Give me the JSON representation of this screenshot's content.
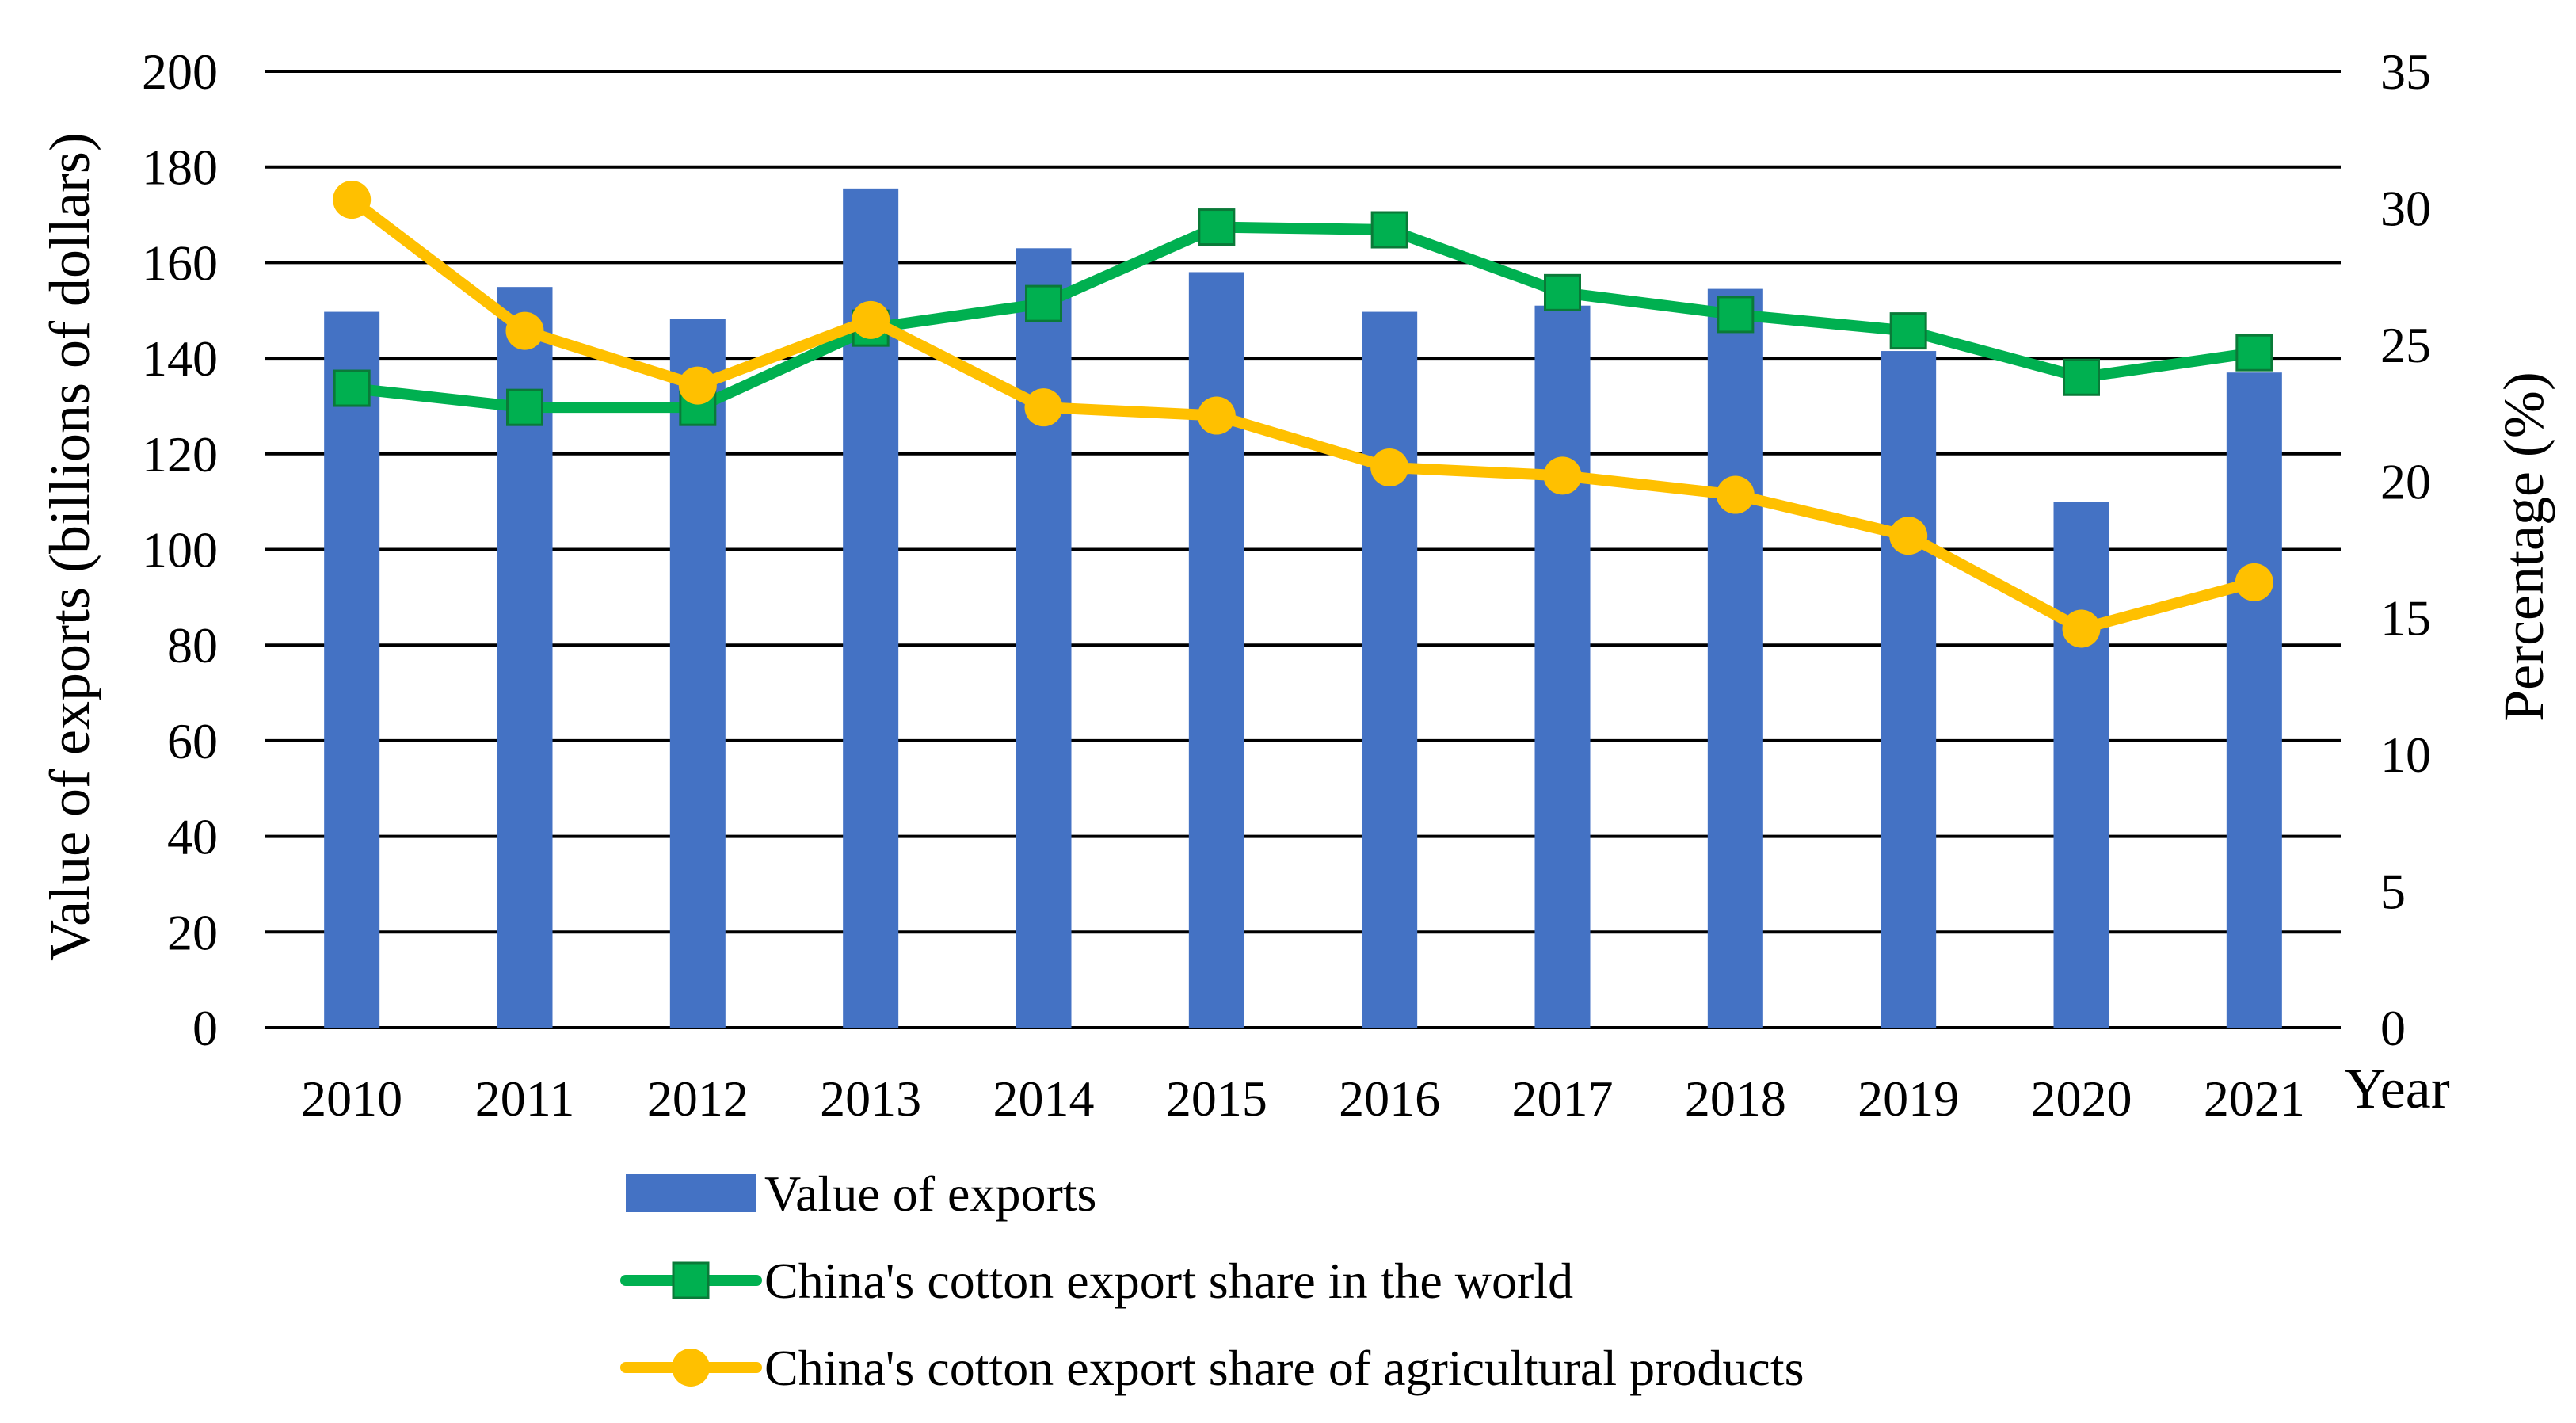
{
  "chart_data": {
    "type": "bar",
    "categories": [
      "2010",
      "2011",
      "2012",
      "2013",
      "2014",
      "2015",
      "2016",
      "2017",
      "2018",
      "2019",
      "2020",
      "2021"
    ],
    "xlabel": "Year",
    "ylabel": "Value of exports (billions of dollars)",
    "ylabel_right": "Percentage (%)",
    "ylim": [
      0,
      200
    ],
    "ylim_right": [
      0,
      35
    ],
    "yticks": [
      "0",
      "20",
      "40",
      "60",
      "80",
      "100",
      "120",
      "140",
      "160",
      "180",
      "200"
    ],
    "yticks_right": [
      "0",
      "5",
      "10",
      "15",
      "20",
      "25",
      "30",
      "35"
    ],
    "grid": true,
    "legend_position": "bottom",
    "series": [
      {
        "name": "Value of exports",
        "type": "bar",
        "axis": "left",
        "color": "#4472C4",
        "values": [
          149.7,
          154.9,
          148.3,
          175.5,
          163.0,
          158.0,
          149.7,
          151.0,
          154.5,
          141.5,
          110.0,
          137.0
        ]
      },
      {
        "name": "China's cotton export share in the world",
        "type": "line",
        "marker": "square",
        "axis": "right",
        "color": "#00B050",
        "values": [
          23.4,
          22.7,
          22.7,
          25.6,
          26.5,
          29.3,
          29.2,
          26.9,
          26.1,
          25.5,
          23.8,
          24.7
        ]
      },
      {
        "name": "China's cotton export share of agricultural products",
        "type": "line",
        "marker": "circle",
        "axis": "right",
        "color": "#FFC000",
        "values": [
          30.3,
          25.5,
          23.5,
          25.9,
          22.7,
          22.4,
          20.5,
          20.2,
          19.5,
          18.0,
          14.6,
          16.3
        ]
      }
    ]
  }
}
